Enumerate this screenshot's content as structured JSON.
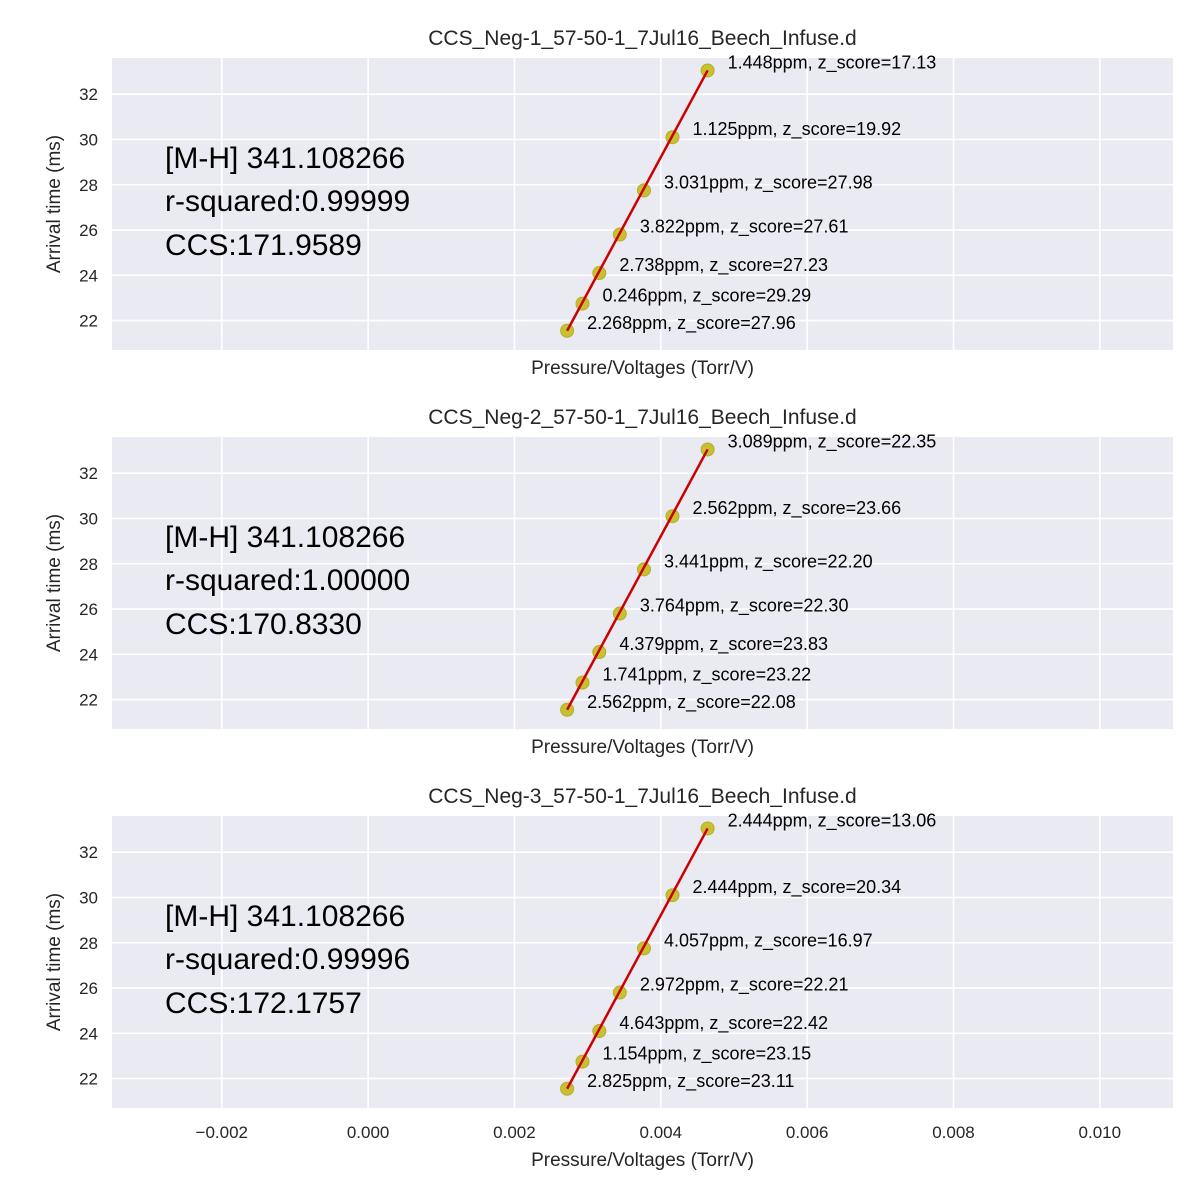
{
  "colors": {
    "plot_background": "#eaeaf2",
    "grid": "#ffffff",
    "points": "#c8c033",
    "fit_line": "#cc0000",
    "text": "#262626"
  },
  "chart_data": [
    {
      "type": "scatter",
      "title": "CCS_Neg-1_57-50-1_7Jul16_Beech_Infuse.d",
      "xlabel": "Pressure/Voltages (Torr/V)",
      "ylabel": "Arrival time (ms)",
      "xlim": [
        -0.0035,
        0.011
      ],
      "ylim": [
        20.7,
        33.6
      ],
      "xticks": [
        -0.002,
        0.0,
        0.002,
        0.004,
        0.006,
        0.008,
        0.01
      ],
      "xtick_labels": [
        "−0.002",
        "0.000",
        "0.002",
        "0.004",
        "0.006",
        "0.008",
        "0.010"
      ],
      "yticks": [
        22,
        24,
        26,
        28,
        30,
        32
      ],
      "ytick_labels": [
        "22",
        "24",
        "26",
        "28",
        "30",
        "32"
      ],
      "grid": true,
      "annotations": [
        "[M-H] 341.108266",
        "r-squared:0.99999",
        "CCS:171.9589"
      ],
      "fit_line": {
        "x": [
          0.00272,
          0.00464
        ],
        "y": [
          21.55,
          33.05
        ]
      },
      "points": [
        {
          "x": 0.00272,
          "y": 21.55,
          "label": "2.268ppm, z_score=27.96"
        },
        {
          "x": 0.00293,
          "y": 22.75,
          "label": "0.246ppm, z_score=29.29"
        },
        {
          "x": 0.00316,
          "y": 24.1,
          "label": "2.738ppm, z_score=27.23"
        },
        {
          "x": 0.00344,
          "y": 25.8,
          "label": "3.822ppm, z_score=27.61"
        },
        {
          "x": 0.00377,
          "y": 27.75,
          "label": "3.031ppm, z_score=27.98"
        },
        {
          "x": 0.00416,
          "y": 30.1,
          "label": "1.125ppm, z_score=19.92"
        },
        {
          "x": 0.00464,
          "y": 33.05,
          "label": "1.448ppm, z_score=17.13"
        }
      ]
    },
    {
      "type": "scatter",
      "title": "CCS_Neg-2_57-50-1_7Jul16_Beech_Infuse.d",
      "xlabel": "Pressure/Voltages (Torr/V)",
      "ylabel": "Arrival time (ms)",
      "xlim": [
        -0.0035,
        0.011
      ],
      "ylim": [
        20.7,
        33.6
      ],
      "xticks": [
        -0.002,
        0.0,
        0.002,
        0.004,
        0.006,
        0.008,
        0.01
      ],
      "xtick_labels": [
        "−0.002",
        "0.000",
        "0.002",
        "0.004",
        "0.006",
        "0.008",
        "0.010"
      ],
      "yticks": [
        22,
        24,
        26,
        28,
        30,
        32
      ],
      "ytick_labels": [
        "22",
        "24",
        "26",
        "28",
        "30",
        "32"
      ],
      "grid": true,
      "annotations": [
        "[M-H] 341.108266",
        "r-squared:1.00000",
        "CCS:170.8330"
      ],
      "fit_line": {
        "x": [
          0.00272,
          0.00464
        ],
        "y": [
          21.55,
          33.05
        ]
      },
      "points": [
        {
          "x": 0.00272,
          "y": 21.55,
          "label": "2.562ppm, z_score=22.08"
        },
        {
          "x": 0.00293,
          "y": 22.75,
          "label": "1.741ppm, z_score=23.22"
        },
        {
          "x": 0.00316,
          "y": 24.1,
          "label": "4.379ppm, z_score=23.83"
        },
        {
          "x": 0.00344,
          "y": 25.8,
          "label": "3.764ppm, z_score=22.30"
        },
        {
          "x": 0.00377,
          "y": 27.75,
          "label": "3.441ppm, z_score=22.20"
        },
        {
          "x": 0.00416,
          "y": 30.1,
          "label": "2.562ppm, z_score=23.66"
        },
        {
          "x": 0.00464,
          "y": 33.05,
          "label": "3.089ppm, z_score=22.35"
        }
      ]
    },
    {
      "type": "scatter",
      "title": "CCS_Neg-3_57-50-1_7Jul16_Beech_Infuse.d",
      "xlabel": "Pressure/Voltages (Torr/V)",
      "ylabel": "Arrival time (ms)",
      "xlim": [
        -0.0035,
        0.011
      ],
      "ylim": [
        20.7,
        33.6
      ],
      "xticks": [
        -0.002,
        0.0,
        0.002,
        0.004,
        0.006,
        0.008,
        0.01
      ],
      "xtick_labels": [
        "−0.002",
        "0.000",
        "0.002",
        "0.004",
        "0.006",
        "0.008",
        "0.010"
      ],
      "yticks": [
        22,
        24,
        26,
        28,
        30,
        32
      ],
      "ytick_labels": [
        "22",
        "24",
        "26",
        "28",
        "30",
        "32"
      ],
      "grid": true,
      "show_xtick_labels": true,
      "annotations": [
        "[M-H] 341.108266",
        "r-squared:0.99996",
        "CCS:172.1757"
      ],
      "fit_line": {
        "x": [
          0.00272,
          0.00464
        ],
        "y": [
          21.55,
          33.05
        ]
      },
      "points": [
        {
          "x": 0.00272,
          "y": 21.55,
          "label": "2.825ppm, z_score=23.11"
        },
        {
          "x": 0.00293,
          "y": 22.75,
          "label": "1.154ppm, z_score=23.15"
        },
        {
          "x": 0.00316,
          "y": 24.1,
          "label": "4.643ppm, z_score=22.42"
        },
        {
          "x": 0.00344,
          "y": 25.8,
          "label": "2.972ppm, z_score=22.21"
        },
        {
          "x": 0.00377,
          "y": 27.75,
          "label": "4.057ppm, z_score=16.97"
        },
        {
          "x": 0.00416,
          "y": 30.1,
          "label": "2.444ppm, z_score=20.34"
        },
        {
          "x": 0.00464,
          "y": 33.05,
          "label": "2.444ppm, z_score=13.06"
        }
      ]
    }
  ]
}
